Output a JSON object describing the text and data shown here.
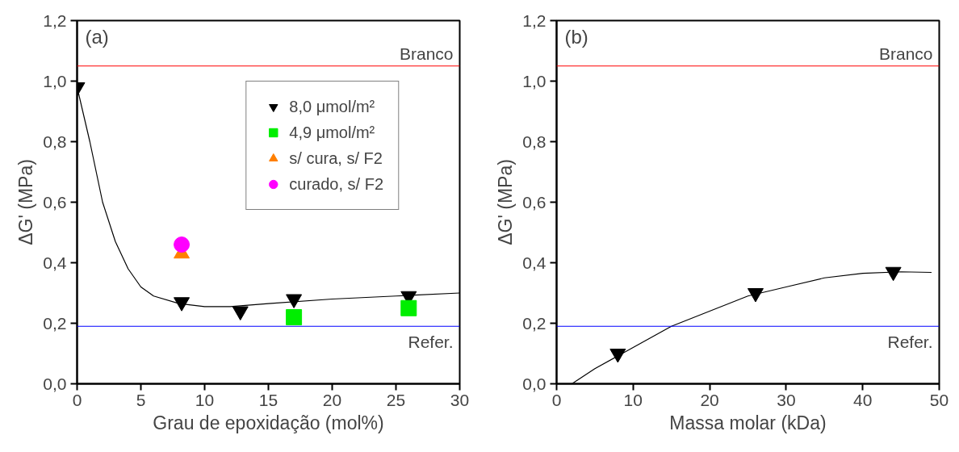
{
  "chart_data": [
    {
      "type": "scatter",
      "xlabel": "Grau de epoxidação (mol%)",
      "ylabel": "ΔG' (MPa)",
      "annotations": [
        "(a)"
      ],
      "xlim": [
        0,
        30
      ],
      "xticks": [
        0,
        5,
        10,
        15,
        20,
        25,
        30
      ],
      "ylim": [
        0,
        1.2
      ],
      "yticks": [
        {
          "value": 0,
          "label": "0,0"
        },
        {
          "value": 0.2,
          "label": "0,2"
        },
        {
          "value": 0.4,
          "label": "0,4"
        },
        {
          "value": 0.6,
          "label": "0,6"
        },
        {
          "value": 0.8,
          "label": "0,8"
        },
        {
          "value": 1.0,
          "label": "1,0"
        },
        {
          "value": 1.2,
          "label": "1,2"
        }
      ],
      "grid": false,
      "legend": "top right",
      "ref_lines": [
        {
          "axis": "y",
          "value": 1.05,
          "label": "Branco",
          "color": "#ff0000"
        },
        {
          "axis": "y",
          "value": 0.19,
          "label": "Refer.",
          "color": "#0000ff"
        }
      ],
      "series": [
        {
          "type": "line",
          "color": "#000000",
          "x": [
            0,
            1,
            2,
            3,
            4,
            5,
            6,
            8,
            10,
            12,
            15,
            20,
            25,
            30
          ],
          "values": [
            0.98,
            0.8,
            0.6,
            0.47,
            0.38,
            0.32,
            0.29,
            0.265,
            0.255,
            0.255,
            0.265,
            0.28,
            0.29,
            0.3
          ]
        },
        {
          "name": "8,0 μmol/m²",
          "color": "#000000",
          "x": [
            0,
            8.2,
            12.8,
            17,
            26
          ],
          "values": [
            0.98,
            0.27,
            0.24,
            0.28,
            0.29
          ]
        },
        {
          "name": "4,9 μmol/m²",
          "marker": "square",
          "color": "#00ee00",
          "x": [
            17,
            26
          ],
          "values": [
            0.22,
            0.25
          ]
        },
        {
          "name": "s/ cura, s/ F2",
          "marker": "triangle",
          "color": "#ff7f00",
          "x": [
            8.2
          ],
          "values": [
            0.43
          ]
        },
        {
          "name": "curado, s/ F2",
          "marker": "circle",
          "color": "#ff00ff",
          "x": [
            8.2
          ],
          "values": [
            0.46
          ]
        }
      ]
    },
    {
      "type": "scatter",
      "xlabel": "Massa molar (kDa)",
      "ylabel": "ΔG' (MPa)",
      "annotations": [
        "(b)"
      ],
      "xlim": [
        0,
        50
      ],
      "xticks": [
        0,
        10,
        20,
        30,
        40,
        50
      ],
      "ylim": [
        0,
        1.2
      ],
      "yticks": [
        {
          "value": 0,
          "label": "0,0"
        },
        {
          "value": 0.2,
          "label": "0,2"
        },
        {
          "value": 0.4,
          "label": "0,4"
        },
        {
          "value": 0.6,
          "label": "0,6"
        },
        {
          "value": 0.8,
          "label": "0,8"
        },
        {
          "value": 1.0,
          "label": "1,0"
        },
        {
          "value": 1.2,
          "label": "1,2"
        }
      ],
      "grid": false,
      "legend": false,
      "ref_lines": [
        {
          "axis": "y",
          "value": 1.05,
          "label": "Branco",
          "color": "#ff0000"
        },
        {
          "axis": "y",
          "value": 0.19,
          "label": "Refer.",
          "color": "#0000ff"
        }
      ],
      "series": [
        {
          "type": "line",
          "color": "#000000",
          "x": [
            2,
            5,
            10,
            15,
            20,
            25,
            30,
            35,
            40,
            45,
            49
          ],
          "values": [
            0,
            0.05,
            0.12,
            0.19,
            0.24,
            0.29,
            0.32,
            0.35,
            0.365,
            0.37,
            0.368
          ]
        },
        {
          "color": "#000000",
          "x": [
            8,
            26,
            44
          ],
          "values": [
            0.1,
            0.3,
            0.37
          ]
        }
      ]
    }
  ]
}
